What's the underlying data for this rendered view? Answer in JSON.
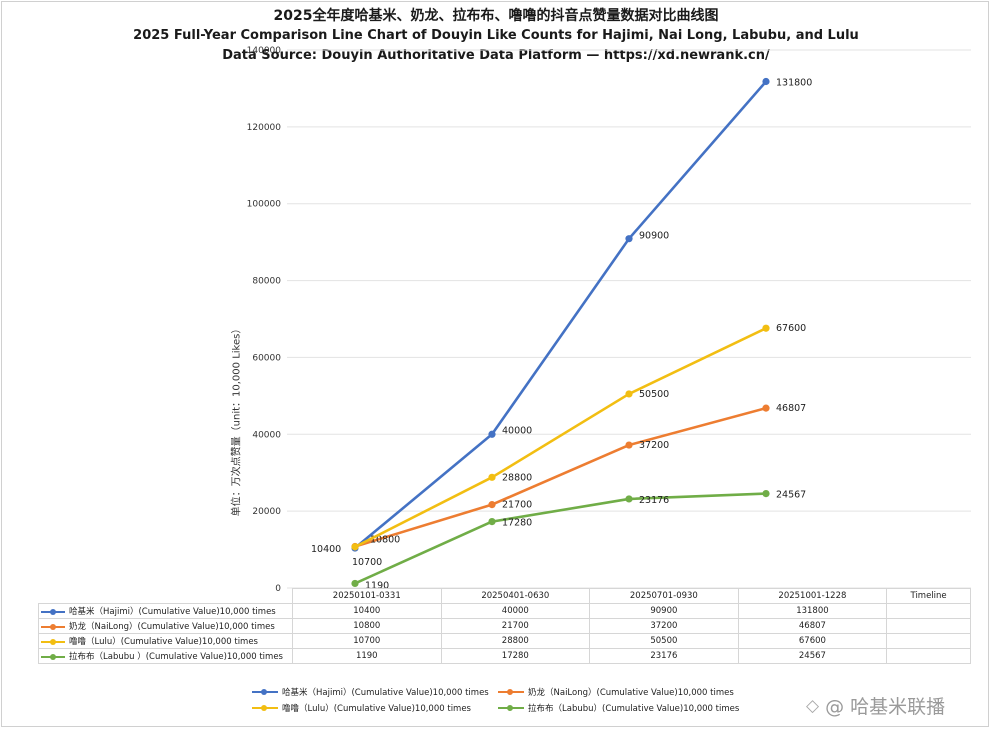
{
  "titles": {
    "line1": "2025全年度哈基米、奶龙、拉布布、噜噜的抖音点赞量数据对比曲线图",
    "line2": "2025 Full-Year Comparison Line Chart of Douyin Like Counts for Hajimi, Nai Long, Labubu, and Lulu",
    "line3": "Data Source: Douyin Authoritative Data Platform — https://xd.newrank.cn/"
  },
  "chart_data": {
    "type": "line",
    "title": "2025全年度哈基米、奶龙、拉布布、噜噜的抖音点赞量数据对比曲线图",
    "ylabel": "单位：万次点赞量（unit：10,000 Likes）",
    "xlabel": "Timeline",
    "ylim": [
      0,
      140000
    ],
    "yticks": [
      0,
      20000,
      40000,
      60000,
      80000,
      100000,
      120000,
      140000
    ],
    "categories": [
      "20250101-0331",
      "20250401-0630",
      "20250701-0930",
      "20251001-1228"
    ],
    "grid": true,
    "legend": "bottom",
    "series": [
      {
        "name": "哈基米（Hajimi）（Cumulative Value)10,000 times",
        "color": "#4472C4",
        "values": [
          10400,
          40000,
          90900,
          131800
        ]
      },
      {
        "name": "奶龙（NaiLong）(Cumulative Value)10,000 times",
        "color": "#ED7D31",
        "values": [
          10800,
          21700,
          37200,
          46807
        ]
      },
      {
        "name": "噜噜（Lulu）(Cumulative Value)10,000 times",
        "color": "#F2BE12",
        "values": [
          10700,
          28800,
          50500,
          67600
        ]
      },
      {
        "name": "拉布布（Labubu）(Cumulative Value)10,000 times",
        "color": "#70AD47",
        "values": [
          1190,
          17280,
          23176,
          24567
        ]
      }
    ]
  },
  "table": {
    "headers": [
      "20250101-0331",
      "20250401-0630",
      "20250701-0930",
      "20251001-1228",
      "Timeline"
    ],
    "rows": [
      {
        "label": "哈基米（Hajimi）(Cumulative Value)10,000 times",
        "color": "#4472C4",
        "cells": [
          "10400",
          "40000",
          "90900",
          "131800",
          ""
        ]
      },
      {
        "label": "奶龙（NaiLong）(Cumulative Value)10,000 times",
        "color": "#ED7D31",
        "cells": [
          "10800",
          "21700",
          "37200",
          "46807",
          ""
        ]
      },
      {
        "label": "噜噜（Lulu）(Cumulative Value)10,000 times",
        "color": "#F2BE12",
        "cells": [
          "10700",
          "28800",
          "50500",
          "67600",
          ""
        ]
      },
      {
        "label": "拉布布（Labubu ）(Cumulative Value)10,000 times",
        "color": "#70AD47",
        "cells": [
          "1190",
          "17280",
          "23176",
          "24567",
          ""
        ]
      }
    ]
  },
  "legend": {
    "items": [
      {
        "label": "哈基米（Hajimi）(Cumulative Value)10,000 times",
        "color": "#4472C4"
      },
      {
        "label": "奶龙（NaiLong）(Cumulative Value)10,000 times",
        "color": "#ED7D31"
      },
      {
        "label": "噜噜（Lulu）(Cumulative Value)10,000 times",
        "color": "#F2BE12"
      },
      {
        "label": "拉布布（Labubu）(Cumulative Value)10,000 times",
        "color": "#70AD47"
      }
    ]
  },
  "watermark": {
    "icon": "weibo-like-icon",
    "text": "@ 哈基米联播"
  }
}
